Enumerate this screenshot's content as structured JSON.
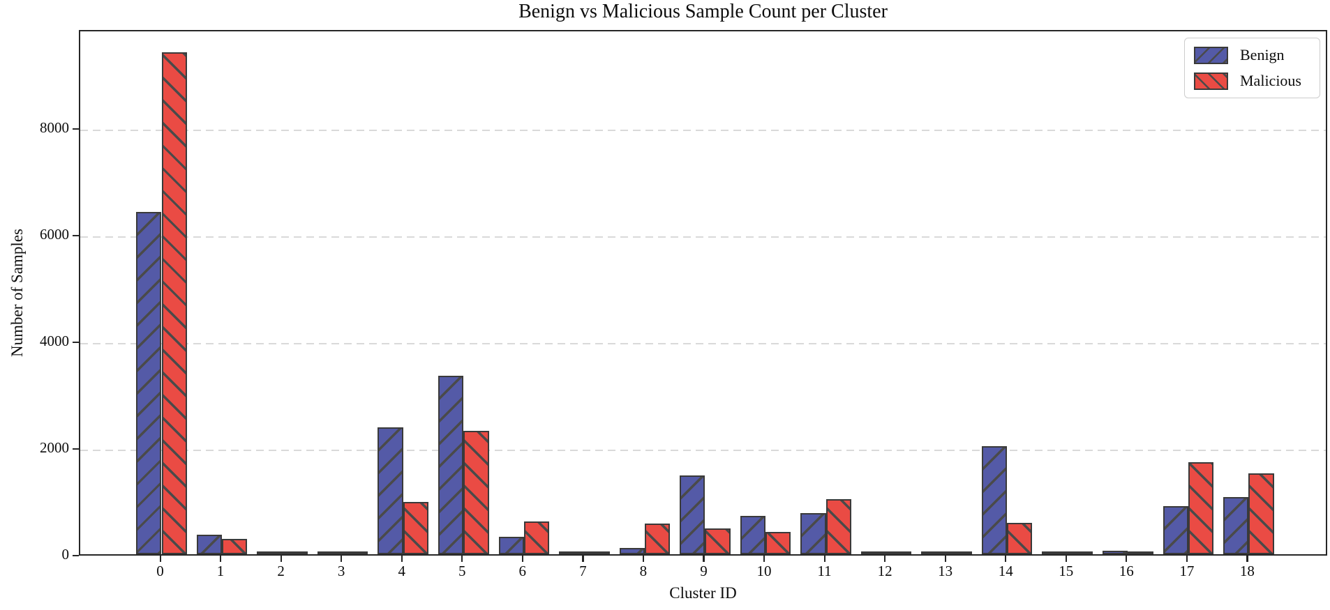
{
  "chart_data": {
    "type": "bar",
    "title": "Benign vs Malicious Sample Count per Cluster",
    "xlabel": "Cluster ID",
    "ylabel": "Number of Samples",
    "categories": [
      "0",
      "1",
      "2",
      "3",
      "4",
      "5",
      "6",
      "7",
      "8",
      "9",
      "10",
      "11",
      "12",
      "13",
      "14",
      "15",
      "16",
      "17",
      "18"
    ],
    "series": [
      {
        "name": "Benign",
        "color": "#545AA7",
        "hatch": "/",
        "values": [
          6420,
          360,
          10,
          20,
          2380,
          3340,
          330,
          5,
          115,
          1470,
          720,
          770,
          15,
          10,
          2030,
          35,
          60,
          900,
          1070
        ]
      },
      {
        "name": "Malicious",
        "color": "#EA4B44",
        "hatch": "\\",
        "values": [
          9400,
          290,
          10,
          55,
          980,
          2310,
          610,
          5,
          570,
          490,
          420,
          1030,
          30,
          10,
          590,
          15,
          30,
          1720,
          1510
        ]
      }
    ],
    "ylim": [
      0,
      9850
    ],
    "yticks": [
      0,
      2000,
      4000,
      6000,
      8000
    ],
    "grid": "horizontal-dashed",
    "gridline_color": "#d9d9d9",
    "legend_position": "upper-right",
    "bar_edge_color": "#3a3a3a",
    "hatch_color": "#4a4a4a",
    "axis_color": "#262626"
  }
}
